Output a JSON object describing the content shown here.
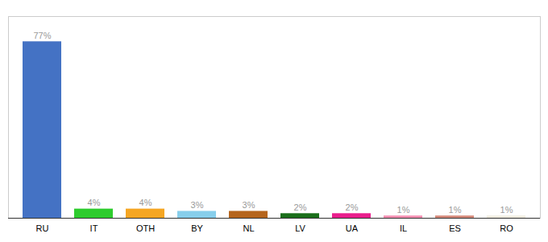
{
  "chart_data": {
    "type": "bar",
    "categories": [
      "RU",
      "IT",
      "OTH",
      "BY",
      "NL",
      "LV",
      "UA",
      "IL",
      "ES",
      "RO"
    ],
    "values": [
      77,
      4,
      4,
      3,
      3,
      2,
      2,
      1,
      1,
      1
    ],
    "colors": [
      "#4472c4",
      "#2ecc2e",
      "#f5a623",
      "#87ceeb",
      "#b5651d",
      "#1a6e1a",
      "#e91e8c",
      "#f48fb1",
      "#d4897a",
      "#f0ece0"
    ],
    "ylim": [
      0,
      88
    ],
    "data_labels": true,
    "value_labels": [
      "77%",
      "4%",
      "4%",
      "3%",
      "3%",
      "2%",
      "2%",
      "1%",
      "1%",
      "1%"
    ],
    "tick_labels": "x",
    "grid": false
  }
}
